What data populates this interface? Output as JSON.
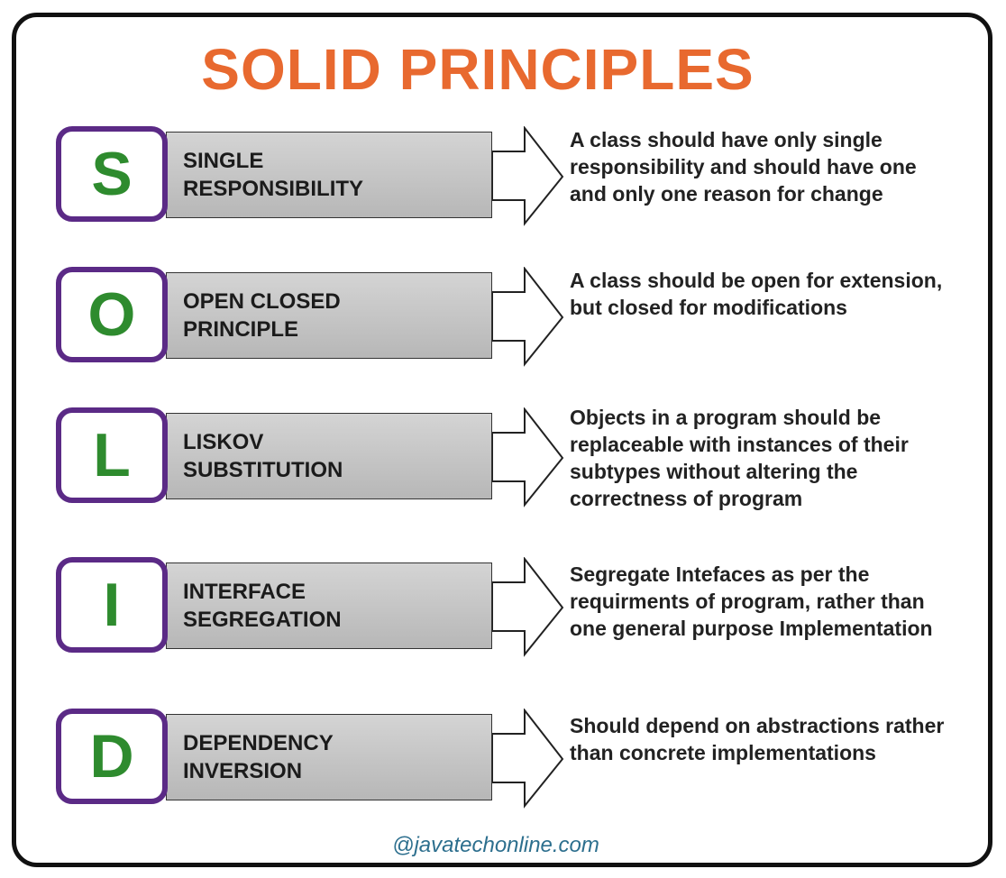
{
  "title": "SOLID PRINCIPLES",
  "colors": {
    "title": "#e8692f",
    "letter": "#2e8b2e",
    "letter_border": "#5b2a86",
    "footer": "#2d6f8e"
  },
  "principles": [
    {
      "letter": "S",
      "name_line1": "SINGLE",
      "name_line2": "RESPONSIBILITY",
      "description": "A class should have only single responsibility and should have one and only one reason for change"
    },
    {
      "letter": "O",
      "name_line1": "OPEN CLOSED",
      "name_line2": "PRINCIPLE",
      "description": "A class should be open for extension, but closed for modifications"
    },
    {
      "letter": "L",
      "name_line1": "LISKOV",
      "name_line2": "SUBSTITUTION",
      "description": "Objects in a program should be replaceable with instances of their subtypes without altering the correctness of program"
    },
    {
      "letter": "I",
      "name_line1": "INTERFACE",
      "name_line2": "SEGREGATION",
      "description": "Segregate Intefaces as per the requirments of program, rather than one general purpose Implementation"
    },
    {
      "letter": "D",
      "name_line1": "DEPENDENCY",
      "name_line2": "INVERSION",
      "description": "Should depend on abstractions rather than concrete implementations"
    }
  ],
  "footer": "@javatechonline.com"
}
